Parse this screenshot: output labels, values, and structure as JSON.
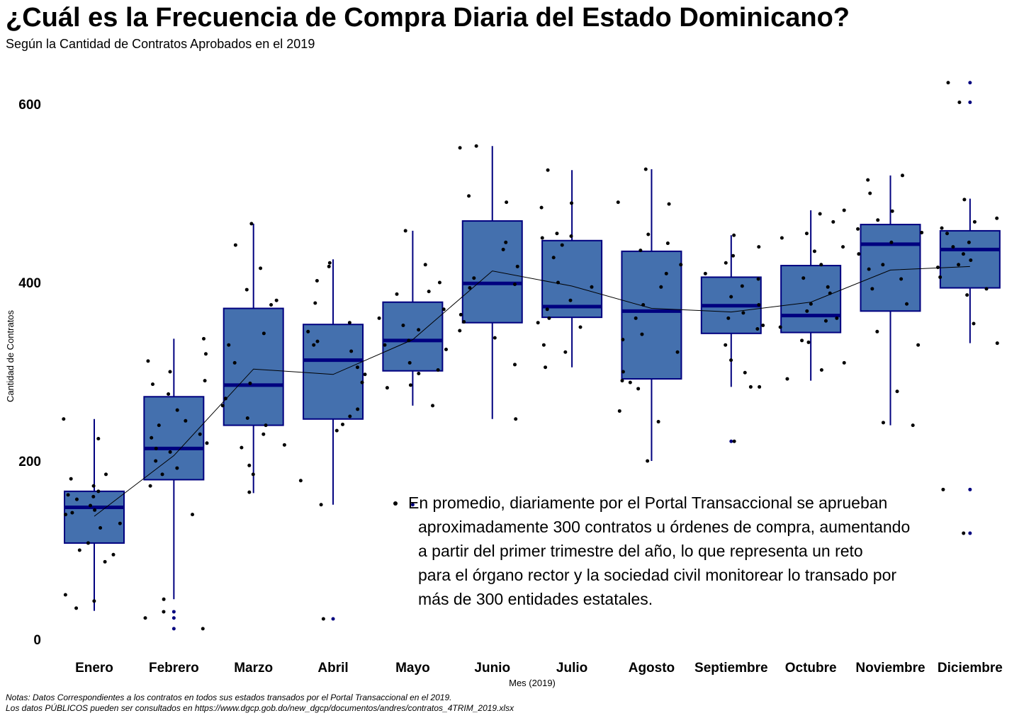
{
  "title": "¿Cuál es la Frecuencia de Compra Diaria del Estado Dominicano?",
  "subtitle": "Según la Cantidad de Contratos Aprobados en el 2019",
  "notes": [
    "Notas: Datos Correspondientes a los contratos en todos sus estados transados por el Portal Transaccional en el 2019.",
    "Los datos PÚBLICOS pueden ser consultados en https://www.dgcp.gob.do/new_dgcp/documentos/andres/contratos_4TRIM_2019.xlsx"
  ],
  "annotation": {
    "lines": [
      "En promedio, diariamente por el Portal Transaccional se aprueban",
      "aproximadamente 300 contratos u órdenes de compra, aumentando",
      "a partir del primer trimestre del año, lo que representa un reto",
      "para el órgano rector y la sociedad civil monitorear lo transado por",
      "más de 300 entidades estatales."
    ]
  },
  "colors": {
    "box_fill": "#4470AE",
    "box_border": "#00007F",
    "median": "#00007F",
    "whisker": "#00007F",
    "outlier": "#00007F",
    "points": "#000000",
    "mean_line": "#000000"
  },
  "chart_data": {
    "type": "boxplot",
    "xlabel": "Mes (2019)",
    "ylabel": "Cantidad de Contratos",
    "ylim": [
      0,
      620
    ],
    "yticks": [
      0,
      200,
      400,
      600
    ],
    "grid": false,
    "categories": [
      "Enero",
      "Febrero",
      "Marzo",
      "Abril",
      "Mayo",
      "Junio",
      "Julio",
      "Agosto",
      "Septiembre",
      "Octubre",
      "Noviembre",
      "Diciembre"
    ],
    "boxes": [
      {
        "q1": 108,
        "median": 148,
        "q3": 166,
        "lower": 32,
        "upper": 247,
        "outliers": []
      },
      {
        "q1": 179,
        "median": 214,
        "q3": 272,
        "lower": 45,
        "upper": 337,
        "outliers": [
          12,
          24,
          31
        ]
      },
      {
        "q1": 240,
        "median": 285,
        "q3": 371,
        "lower": 164,
        "upper": 466,
        "outliers": []
      },
      {
        "q1": 247,
        "median": 313,
        "q3": 353,
        "lower": 151,
        "upper": 426,
        "outliers": [
          23
        ]
      },
      {
        "q1": 301,
        "median": 335,
        "q3": 378,
        "lower": 262,
        "upper": 458,
        "outliers": [
          151
        ]
      },
      {
        "q1": 355,
        "median": 399,
        "q3": 469,
        "lower": 247,
        "upper": 553,
        "outliers": []
      },
      {
        "q1": 361,
        "median": 373,
        "q3": 447,
        "lower": 305,
        "upper": 526,
        "outliers": []
      },
      {
        "q1": 292,
        "median": 368,
        "q3": 435,
        "lower": 200,
        "upper": 527,
        "outliers": []
      },
      {
        "q1": 343,
        "median": 374,
        "q3": 406,
        "lower": 283,
        "upper": 453,
        "outliers": [
          222
        ]
      },
      {
        "q1": 344,
        "median": 363,
        "q3": 419,
        "lower": 290,
        "upper": 481,
        "outliers": []
      },
      {
        "q1": 368,
        "median": 443,
        "q3": 465,
        "lower": 240,
        "upper": 520,
        "outliers": []
      },
      {
        "q1": 394,
        "median": 437,
        "q3": 458,
        "lower": 332,
        "upper": 494,
        "outliers": [
          119,
          168,
          602,
          624
        ]
      }
    ],
    "mean_line": [
      138,
      206,
      303,
      297,
      336,
      413,
      396,
      371,
      367,
      378,
      414,
      418
    ],
    "jitter_points": [
      [
        172,
        166,
        162,
        157,
        150,
        145,
        140,
        130,
        125,
        108,
        100,
        95,
        87,
        50,
        43,
        35,
        185,
        180,
        225,
        160,
        142,
        247
      ],
      [
        337,
        320,
        312,
        300,
        290,
        286,
        275,
        257,
        245,
        240,
        226,
        220,
        210,
        200,
        192,
        185,
        172,
        140,
        45,
        31,
        24,
        12,
        214,
        230
      ],
      [
        466,
        442,
        416,
        392,
        375,
        343,
        330,
        310,
        287,
        270,
        262,
        248,
        240,
        230,
        218,
        215,
        195,
        185,
        165,
        380
      ],
      [
        422,
        418,
        402,
        377,
        355,
        345,
        334,
        323,
        305,
        297,
        288,
        258,
        250,
        241,
        234,
        178,
        151,
        23,
        330
      ],
      [
        458,
        420,
        390,
        387,
        370,
        360,
        352,
        347,
        335,
        330,
        325,
        310,
        302,
        298,
        285,
        282,
        262,
        400
      ],
      [
        553,
        551,
        497,
        490,
        445,
        437,
        418,
        405,
        398,
        394,
        364,
        356,
        346,
        338,
        308,
        247
      ],
      [
        526,
        489,
        484,
        455,
        452,
        450,
        442,
        428,
        400,
        395,
        370,
        360,
        355,
        350,
        330,
        322,
        305,
        380
      ],
      [
        527,
        490,
        488,
        454,
        444,
        436,
        420,
        410,
        395,
        360,
        342,
        336,
        322,
        300,
        290,
        288,
        281,
        256,
        244,
        200,
        375
      ],
      [
        453,
        440,
        430,
        422,
        410,
        404,
        396,
        384,
        375,
        366,
        360,
        352,
        348,
        330,
        313,
        299,
        283,
        283,
        222
      ],
      [
        481,
        477,
        468,
        455,
        450,
        440,
        435,
        420,
        405,
        395,
        388,
        376,
        368,
        360,
        357,
        350,
        335,
        333,
        310,
        302,
        292
      ],
      [
        520,
        515,
        500,
        480,
        470,
        460,
        456,
        445,
        432,
        420,
        415,
        404,
        393,
        376,
        345,
        330,
        278,
        243,
        240
      ],
      [
        624,
        602,
        493,
        472,
        468,
        461,
        455,
        445,
        440,
        432,
        425,
        420,
        417,
        406,
        393,
        386,
        354,
        332,
        168,
        119
      ]
    ]
  }
}
